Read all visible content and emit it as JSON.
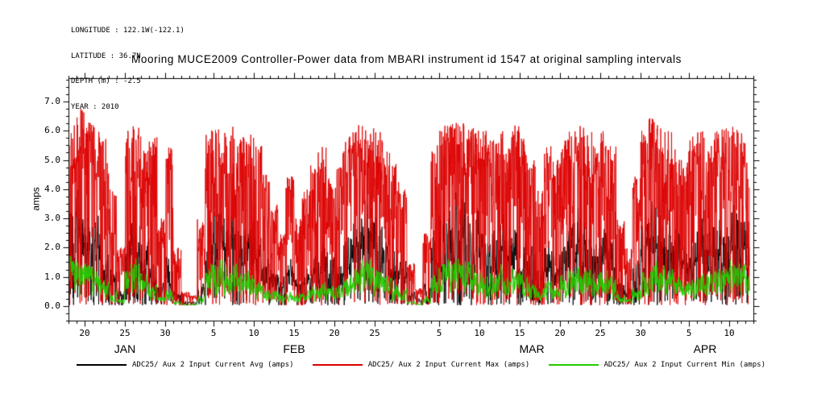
{
  "header": {
    "longitude": "LONGITUDE : 122.1W(-122.1)",
    "latitude": "LATITUDE : 36.7N",
    "depth": "DEPTH (m) : -2.5",
    "year": "YEAR : 2010"
  },
  "title": "Mooring MUCE2009 Controller-Power data from MBARI instrument id 1547 at original sampling intervals",
  "chart_data": {
    "type": "line",
    "title": "Mooring MUCE2009 Controller-Power data from MBARI instrument id 1547 at original sampling intervals",
    "ylabel": "amps",
    "xlabel": "",
    "ylim": [
      -0.5,
      7.8
    ],
    "yticks": [
      0,
      1,
      2,
      3,
      4,
      5,
      6,
      7
    ],
    "ytick_labels": [
      "0.0",
      "1.0",
      "2.0",
      "3.0",
      "4.0",
      "5.0",
      "6.0",
      "7.0"
    ],
    "y_minor_step": 0.25,
    "x_start": "2010-01-18",
    "x_end": "2010-04-12",
    "n_days": 85,
    "data_days": 84.5,
    "samples_per_day": 32,
    "grid": false,
    "legend_position": "bottom",
    "x_major_ticks": [
      {
        "day": 2,
        "label": "20"
      },
      {
        "day": 7,
        "label": "25"
      },
      {
        "day": 12,
        "label": "30"
      },
      {
        "day": 18,
        "label": "5"
      },
      {
        "day": 23,
        "label": "10"
      },
      {
        "day": 28,
        "label": "15"
      },
      {
        "day": 33,
        "label": "20"
      },
      {
        "day": 38,
        "label": "25"
      },
      {
        "day": 46,
        "label": "5"
      },
      {
        "day": 51,
        "label": "10"
      },
      {
        "day": 56,
        "label": "15"
      },
      {
        "day": 61,
        "label": "20"
      },
      {
        "day": 66,
        "label": "25"
      },
      {
        "day": 71,
        "label": "30"
      },
      {
        "day": 77,
        "label": "5"
      },
      {
        "day": 82,
        "label": "10"
      }
    ],
    "x_month_labels": [
      {
        "label": "JAN",
        "center_day": 7
      },
      {
        "label": "FEB",
        "center_day": 28
      },
      {
        "label": "MAR",
        "center_day": 57.5
      },
      {
        "label": "APR",
        "center_day": 79
      }
    ],
    "series": [
      {
        "name": "ADC25/ Aux 2 Input Current Avg (amps)",
        "color": "#000000",
        "role": "avg",
        "daily_peak": [
          4.3,
          4.4,
          4.2,
          3.5,
          2.5,
          1.5,
          0.8,
          4.0,
          4.2,
          3.0,
          2.0,
          1.0,
          2.0,
          0.6,
          0.2,
          0.2,
          1.0,
          3.8,
          4.3,
          4.0,
          3.8,
          3.2,
          3.5,
          2.8,
          2.0,
          1.5,
          1.2,
          1.8,
          1.2,
          1.5,
          2.0,
          2.5,
          2.0,
          2.2,
          3.0,
          3.5,
          4.4,
          4.2,
          3.8,
          3.0,
          2.5,
          1.8,
          0.6,
          0.3,
          1.0,
          3.0,
          4.0,
          4.3,
          4.5,
          4.4,
          4.0,
          3.5,
          3.2,
          3.8,
          3.0,
          3.5,
          3.0,
          2.5,
          1.8,
          2.8,
          2.2,
          3.0,
          3.5,
          4.0,
          3.8,
          3.0,
          3.3,
          2.8,
          1.2,
          0.8,
          2.0,
          3.5,
          4.0,
          3.8,
          3.5,
          3.0,
          2.5,
          3.0,
          3.5,
          3.2,
          3.8,
          4.0,
          4.3,
          4.2,
          3.5
        ]
      },
      {
        "name": "ADC25/ Aux 2 Input Current Max (amps)",
        "color": "#dd0000",
        "role": "max",
        "daily_peak": [
          6.2,
          7.1,
          6.3,
          6.2,
          5.8,
          4.0,
          2.0,
          6.0,
          6.2,
          5.5,
          5.8,
          3.0,
          5.5,
          2.0,
          0.5,
          0.4,
          3.0,
          6.1,
          6.2,
          6.0,
          6.2,
          5.8,
          6.0,
          5.5,
          4.5,
          3.5,
          2.5,
          4.5,
          3.0,
          4.0,
          5.0,
          5.5,
          4.5,
          5.0,
          5.8,
          6.0,
          6.3,
          6.2,
          6.0,
          5.5,
          5.0,
          4.0,
          1.5,
          0.6,
          2.5,
          5.5,
          6.2,
          6.3,
          6.4,
          6.3,
          6.2,
          6.0,
          5.8,
          6.0,
          5.5,
          6.2,
          5.8,
          5.0,
          4.0,
          5.5,
          5.0,
          5.8,
          6.0,
          6.2,
          6.0,
          5.5,
          6.0,
          5.5,
          3.0,
          2.0,
          4.5,
          6.0,
          6.5,
          6.2,
          6.0,
          5.5,
          5.0,
          5.8,
          6.0,
          5.5,
          6.0,
          6.2,
          6.3,
          6.0,
          5.0
        ]
      },
      {
        "name": "ADC25/ Aux 2 Input Current Min (amps)",
        "color": "#22cc00",
        "role": "min",
        "daily_peak": [
          1.9,
          1.8,
          1.8,
          1.5,
          1.0,
          0.6,
          0.3,
          1.7,
          1.8,
          1.2,
          0.8,
          0.4,
          0.7,
          0.2,
          0.1,
          0.1,
          0.4,
          1.8,
          1.9,
          1.8,
          1.6,
          1.3,
          1.5,
          1.0,
          0.8,
          0.6,
          0.5,
          0.7,
          0.5,
          0.6,
          0.8,
          1.0,
          0.8,
          0.9,
          1.2,
          1.5,
          1.9,
          1.8,
          1.6,
          1.2,
          1.0,
          0.7,
          0.2,
          0.1,
          0.4,
          1.3,
          1.8,
          1.9,
          1.9,
          1.8,
          1.7,
          1.5,
          1.4,
          1.6,
          1.2,
          1.5,
          1.3,
          1.0,
          0.7,
          1.1,
          0.9,
          1.2,
          1.5,
          1.7,
          1.6,
          1.2,
          1.4,
          1.1,
          0.5,
          0.3,
          0.8,
          1.5,
          1.7,
          1.6,
          1.5,
          1.2,
          1.0,
          1.3,
          1.5,
          1.4,
          1.6,
          1.7,
          1.8,
          1.8,
          1.4
        ]
      }
    ]
  }
}
